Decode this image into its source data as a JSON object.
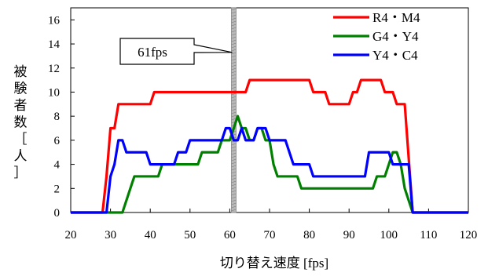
{
  "chart_data": {
    "type": "line",
    "xlabel": "切り替え速度 [fps]",
    "ylabel": "被験者数［人］",
    "ylabel_chars": [
      "被",
      "験",
      "者",
      "数",
      "［",
      "人",
      "］"
    ],
    "xlim": [
      20,
      120
    ],
    "ylim": [
      0,
      17
    ],
    "x_ticks": [
      20,
      30,
      40,
      50,
      60,
      70,
      80,
      90,
      100,
      110,
      120
    ],
    "y_ticks": [
      0,
      2,
      4,
      6,
      8,
      10,
      12,
      14,
      16
    ],
    "grid": false,
    "legend_position": "top-right",
    "annotation": {
      "text": "61fps",
      "x": 61
    },
    "series": [
      {
        "name": "R4・M4",
        "color": "#ff0000",
        "points": [
          [
            20,
            0
          ],
          [
            28,
            0
          ],
          [
            29,
            3
          ],
          [
            30,
            7
          ],
          [
            31,
            7
          ],
          [
            32,
            9
          ],
          [
            40,
            9
          ],
          [
            41,
            10
          ],
          [
            64,
            10
          ],
          [
            65,
            11
          ],
          [
            80,
            11
          ],
          [
            81,
            10
          ],
          [
            84,
            10
          ],
          [
            85,
            9
          ],
          [
            90,
            9
          ],
          [
            91,
            10
          ],
          [
            92,
            10
          ],
          [
            93,
            11
          ],
          [
            98,
            11
          ],
          [
            99,
            10
          ],
          [
            101,
            10
          ],
          [
            102,
            9
          ],
          [
            104,
            9
          ],
          [
            106,
            0
          ],
          [
            120,
            0
          ]
        ]
      },
      {
        "name": "G4・Y4",
        "color": "#008000",
        "points": [
          [
            20,
            0
          ],
          [
            32,
            0
          ],
          [
            33,
            0
          ],
          [
            34,
            1
          ],
          [
            35,
            2
          ],
          [
            36,
            3
          ],
          [
            42,
            3
          ],
          [
            43,
            4
          ],
          [
            44,
            4
          ],
          [
            46,
            4
          ],
          [
            47,
            4
          ],
          [
            52,
            4
          ],
          [
            53,
            5
          ],
          [
            57,
            5
          ],
          [
            58,
            6
          ],
          [
            60,
            6
          ],
          [
            61,
            7
          ],
          [
            62,
            8
          ],
          [
            63,
            7
          ],
          [
            64,
            7
          ],
          [
            65,
            6
          ],
          [
            66,
            6
          ],
          [
            67,
            7
          ],
          [
            68,
            7
          ],
          [
            69,
            6
          ],
          [
            70,
            6
          ],
          [
            71,
            4
          ],
          [
            72,
            3
          ],
          [
            77,
            3
          ],
          [
            78,
            2
          ],
          [
            96,
            2
          ],
          [
            97,
            3
          ],
          [
            99,
            3
          ],
          [
            100,
            4
          ],
          [
            101,
            5
          ],
          [
            102,
            5
          ],
          [
            103,
            4
          ],
          [
            104,
            2
          ],
          [
            106,
            0
          ],
          [
            120,
            0
          ]
        ]
      },
      {
        "name": "Y4・C4",
        "color": "#0000ff",
        "points": [
          [
            20,
            0
          ],
          [
            29,
            0
          ],
          [
            30,
            3
          ],
          [
            31,
            4
          ],
          [
            32,
            6
          ],
          [
            33,
            6
          ],
          [
            34,
            5
          ],
          [
            39,
            5
          ],
          [
            40,
            4
          ],
          [
            46,
            4
          ],
          [
            47,
            5
          ],
          [
            49,
            5
          ],
          [
            50,
            6
          ],
          [
            58,
            6
          ],
          [
            59,
            7
          ],
          [
            60,
            7
          ],
          [
            61,
            6
          ],
          [
            62,
            6
          ],
          [
            63,
            7
          ],
          [
            64,
            6
          ],
          [
            66,
            6
          ],
          [
            67,
            7
          ],
          [
            69,
            7
          ],
          [
            70,
            6
          ],
          [
            74,
            6
          ],
          [
            75,
            5
          ],
          [
            76,
            4
          ],
          [
            80,
            4
          ],
          [
            81,
            3
          ],
          [
            94,
            3
          ],
          [
            95,
            5
          ],
          [
            100,
            5
          ],
          [
            101,
            4
          ],
          [
            105,
            4
          ],
          [
            106,
            0
          ],
          [
            120,
            0
          ]
        ]
      }
    ]
  }
}
